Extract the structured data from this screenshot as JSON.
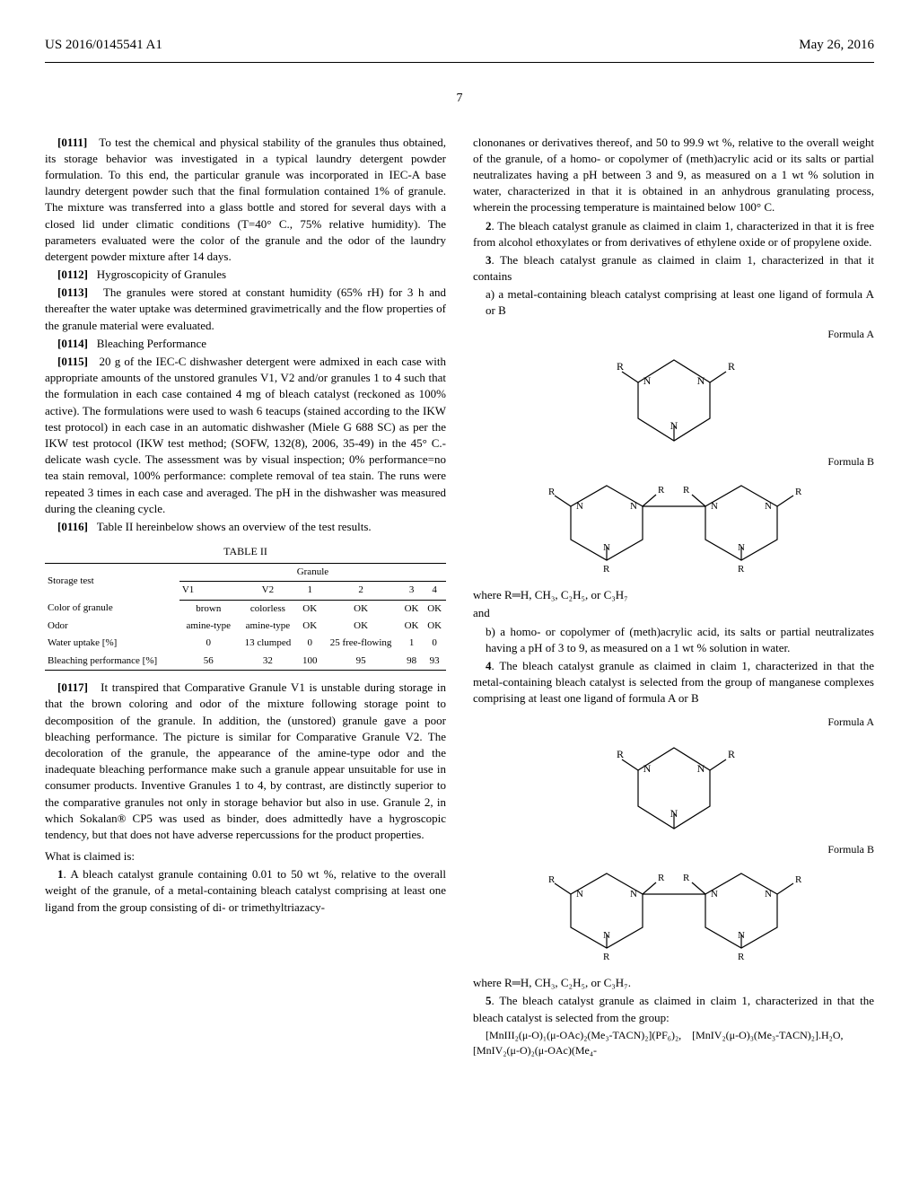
{
  "header": {
    "left": "US 2016/0145541 A1",
    "right": "May 26, 2016"
  },
  "page_number": "7",
  "left_col": {
    "p0111": "[0111] To test the chemical and physical stability of the granules thus obtained, its storage behavior was investigated in a typical laundry detergent powder formulation. To this end, the particular granule was incorporated in IEC-A base laundry detergent powder such that the final formulation contained 1% of granule. The mixture was transferred into a glass bottle and stored for several days with a closed lid under climatic conditions (T=40° C., 75% relative humidity). The parameters evaluated were the color of the granule and the odor of the laundry detergent powder mixture after 14 days.",
    "p0112": "[0112] 2. Hygroscopicity of Granules",
    "p0113": "[0113] The granules were stored at constant humidity (65% rH) for 3 h and thereafter the water uptake was determined gravimetrically and the flow properties of the granule material were evaluated.",
    "p0114": "[0114] 3. Bleaching Performance",
    "p0115": "[0115] 20 g of the IEC-C dishwasher detergent were admixed in each case with appropriate amounts of the unstored granules V1, V2 and/or granules 1 to 4 such that the formulation in each case contained 4 mg of bleach catalyst (reckoned as 100% active). The formulations were used to wash 6 teacups (stained according to the IKW test protocol) in each case in an automatic dishwasher (Miele G 688 SC) as per the IKW test protocol (IKW test method; (SOFW, 132(8), 2006, 35-49) in the 45° C.-delicate wash cycle. The assessment was by visual inspection; 0% performance=no tea stain removal, 100% performance: complete removal of tea stain. The runs were repeated 3 times in each case and averaged. The pH in the dishwasher was measured during the cleaning cycle.",
    "p0116": "[0116] Table II hereinbelow shows an overview of the test results.",
    "table": {
      "title": "TABLE II",
      "group_header": "Granule",
      "row_header": "Storage test",
      "columns": [
        "V1",
        "V2",
        "1",
        "2",
        "3",
        "4"
      ],
      "rows": [
        {
          "label": "Color of granule",
          "cells": [
            "brown",
            "colorless",
            "OK",
            "OK",
            "OK",
            "OK"
          ]
        },
        {
          "label": "Odor",
          "cells": [
            "amine-type",
            "amine-type",
            "OK",
            "OK",
            "OK",
            "OK"
          ]
        },
        {
          "label": "Water uptake [%]",
          "cells": [
            "0",
            "13 clumped",
            "0",
            "25 free-flowing",
            "1",
            "0"
          ]
        },
        {
          "label": "Bleaching performance [%]",
          "cells": [
            "56",
            "32",
            "100",
            "95",
            "98",
            "93"
          ]
        }
      ]
    },
    "p0117": "[0117] It transpired that Comparative Granule V1 is unstable during storage in that the brown coloring and odor of the mixture following storage point to decomposition of the granule. In addition, the (unstored) granule gave a poor bleaching performance. The picture is similar for Comparative Granule V2. The decoloration of the granule, the appearance of the amine-type odor and the inadequate bleaching performance make such a granule appear unsuitable for use in consumer products. Inventive Granules 1 to 4, by contrast, are distinctly superior to the comparative granules not only in storage behavior but also in use. Granule 2, in which Sokalan® CP5 was used as binder, does admittedly have a hygroscopic tendency, but that does not have adverse repercussions for the product properties.",
    "what_claimed": "What is claimed is:",
    "claim1": "1. A bleach catalyst granule containing 0.01 to 50 wt %, relative to the overall weight of the granule, of a metal-containing bleach catalyst comprising at least one ligand from the group consisting of di- or trimethyltriazacy-"
  },
  "right_col": {
    "claim1_cont": "clononanes or derivatives thereof, and 50 to 99.9 wt %, relative to the overall weight of the granule, of a homo- or copolymer of (meth)acrylic acid or its salts or partial neutralizates having a pH between 3 and 9, as measured on a 1 wt % solution in water, characterized in that it is obtained in an anhydrous granulating process, wherein the processing temperature is maintained below 100° C.",
    "claim2": "2. The bleach catalyst granule as claimed in claim 1, characterized in that it is free from alcohol ethoxylates or from derivatives of ethylene oxide or of propylene oxide.",
    "claim3": "3. The bleach catalyst granule as claimed in claim 1, characterized in that it contains",
    "claim3a": "a) a metal-containing bleach catalyst comprising at least one ligand of formula A or B",
    "formulaA_label": "Formula A",
    "formulaB_label": "Formula B",
    "claim3_where": "where R═H, CH₃, C₂H₅, or C₃H₇",
    "claim3_and": "and",
    "claim3b": "b) a homo- or copolymer of (meth)acrylic acid, its salts or partial neutralizates having a pH of 3 to 9, as measured on a 1 wt % solution in water.",
    "claim4": "4. The bleach catalyst granule as claimed in claim 1, characterized in that the metal-containing bleach catalyst is selected from the group of manganese complexes comprising at least one ligand of formula A or B",
    "claim4_where": "where R═H, CH₃, C₂H₅, or C₃H₇.",
    "claim5": "5. The bleach catalyst granule as claimed in claim 1, characterized in that the bleach catalyst is selected from the group:",
    "claim5_formula": "[MnIII₂(μ-O)₁(μ-OAc)₂(Me₃-TACN)₂](PF₆)₂, [MnIV₂(μ-O)₃(Me₃-TACN)₂].H₂O, [MnIV₂(μ-O)₂(μ-OAc)(Me₄-"
  }
}
